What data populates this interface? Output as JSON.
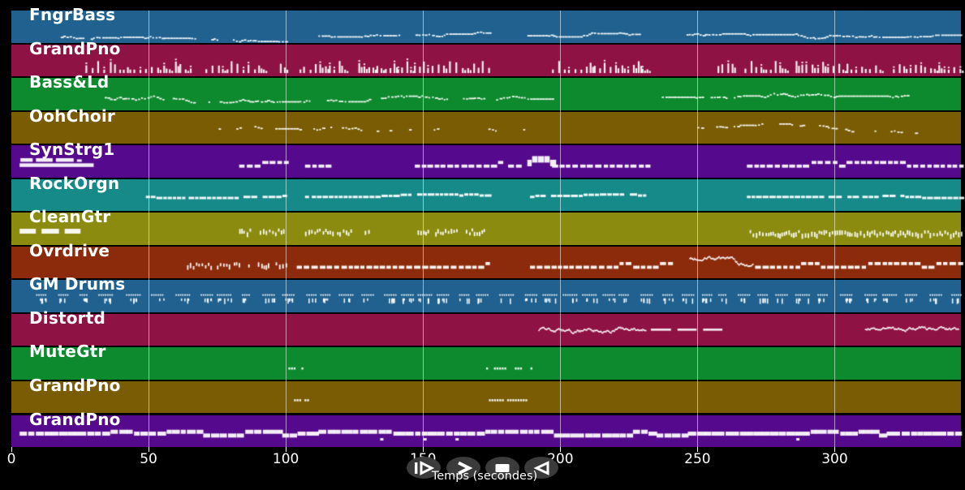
{
  "app": {
    "background": "#000000",
    "notes_color": "#ffffff"
  },
  "axis": {
    "label": "Temps (secondes)",
    "ticks": [
      0,
      50,
      100,
      150,
      200,
      250,
      300
    ],
    "min": 0,
    "max": 346,
    "text_color": "#ffffff",
    "gridlines": true
  },
  "transport": {
    "button_color": "#3b3b3b",
    "glyph_color": "#ffffff",
    "buttons": [
      {
        "name": "play",
        "glyph": "play-bar-icon"
      },
      {
        "name": "fast-forward",
        "glyph": "fast-forward-icon"
      },
      {
        "name": "stop",
        "glyph": "stop-icon"
      },
      {
        "name": "rewind",
        "glyph": "rewind-icon"
      }
    ]
  },
  "chart_data": {
    "type": "midi-track-timeline",
    "xlabel": "Temps (secondes)",
    "x_range": [
      0,
      346
    ],
    "grid": true,
    "tracks": [
      {
        "name": "FngrBass",
        "color": "#20618F",
        "segments": [
          {
            "style": "wavy",
            "s": 18,
            "e": 100,
            "y": 0.8
          },
          {
            "style": "wavy",
            "s": 108,
            "e": 175,
            "y": 0.8
          },
          {
            "style": "wavy",
            "s": 188,
            "e": 229,
            "y": 0.78
          },
          {
            "style": "wavy",
            "s": 246,
            "e": 346,
            "y": 0.78
          }
        ]
      },
      {
        "name": "GrandPno",
        "color": "#8E1243",
        "segments": [
          {
            "style": "vbars",
            "s": 27,
            "e": 100
          },
          {
            "style": "vbars",
            "s": 105,
            "e": 175
          },
          {
            "style": "vbars",
            "s": 197,
            "e": 232
          },
          {
            "style": "vbars",
            "s": 255,
            "e": 346
          }
        ]
      },
      {
        "name": "Bass&Ld",
        "color": "#0E8A2E",
        "segments": [
          {
            "style": "wavy",
            "s": 34,
            "e": 197,
            "y": 0.6
          },
          {
            "style": "wavy",
            "s": 237,
            "e": 327,
            "y": 0.58
          }
        ]
      },
      {
        "name": "OohChoir",
        "color": "#7A5C04",
        "segments": [
          {
            "style": "wavy",
            "s": 67,
            "e": 187,
            "y": 0.5,
            "d": 0.55
          },
          {
            "style": "wavy",
            "s": 250,
            "e": 330,
            "y": 0.5,
            "d": 0.75
          }
        ]
      },
      {
        "name": "SynStrg1",
        "color": "#55098C",
        "segments": [
          {
            "style": "clusterbar",
            "s": 3,
            "e": 30
          },
          {
            "style": "blocks",
            "s": 83,
            "e": 100,
            "y": 0.6
          },
          {
            "style": "blocks",
            "s": 107,
            "e": 117,
            "y": 0.6
          },
          {
            "style": "blocks",
            "s": 147,
            "e": 178,
            "y": 0.6
          },
          {
            "style": "blocks",
            "s": 181,
            "e": 185,
            "y": 0.6
          },
          {
            "style": "tallblocks",
            "s": 188,
            "e": 197,
            "y": 0.5
          },
          {
            "style": "blocks",
            "s": 197,
            "e": 232,
            "y": 0.6
          },
          {
            "style": "blocks",
            "s": 268,
            "e": 346,
            "y": 0.6
          }
        ]
      },
      {
        "name": "RockOrgn",
        "color": "#168989",
        "segments": [
          {
            "style": "dashline",
            "s": 49,
            "e": 100,
            "y": 0.52
          },
          {
            "style": "dashline",
            "s": 107,
            "e": 175,
            "y": 0.52
          },
          {
            "style": "dashline",
            "s": 189,
            "e": 231,
            "y": 0.52
          },
          {
            "style": "dashline",
            "s": 268,
            "e": 346,
            "y": 0.52
          }
        ]
      },
      {
        "name": "CleanGtr",
        "color": "#8B8B10",
        "segments": [
          {
            "style": "leftblocks",
            "s": 3,
            "e": 27
          },
          {
            "style": "smalldash",
            "s": 83,
            "e": 100,
            "y": 0.55,
            "d": 0.8
          },
          {
            "style": "smalldash",
            "s": 107,
            "e": 133,
            "y": 0.55,
            "d": 0.8
          },
          {
            "style": "smalldash",
            "s": 148,
            "e": 175,
            "y": 0.55,
            "d": 0.8
          },
          {
            "style": "smalldash",
            "s": 269,
            "e": 346,
            "y": 0.6,
            "d": 0.97
          }
        ]
      },
      {
        "name": "Ovrdrive",
        "color": "#8C2B0B",
        "segments": [
          {
            "style": "smalldash",
            "s": 64,
            "e": 100,
            "y": 0.55,
            "d": 0.85
          },
          {
            "style": "blocks",
            "s": 104,
            "e": 175,
            "y": 0.6
          },
          {
            "style": "blocks",
            "s": 189,
            "e": 240,
            "y": 0.6
          },
          {
            "style": "thinwave",
            "s": 247,
            "e": 270,
            "y0": 0.34,
            "y1": 0.58
          },
          {
            "style": "blocks",
            "s": 271,
            "e": 346,
            "y": 0.6
          }
        ]
      },
      {
        "name": "GM Drums",
        "color": "#20618F",
        "segments": [
          {
            "style": "drums",
            "s": 9,
            "e": 346
          }
        ]
      },
      {
        "name": "Distortd",
        "color": "#8E1243",
        "segments": [
          {
            "style": "thinwave",
            "s": 192,
            "e": 231,
            "y0": 0.5,
            "y1": 0.46
          },
          {
            "style": "longdash",
            "s": 233,
            "e": 260,
            "y": 0.46
          },
          {
            "style": "thinwave",
            "s": 311,
            "e": 345,
            "y0": 0.45,
            "y1": 0.45
          }
        ]
      },
      {
        "name": "MuteGtr",
        "color": "#0E8A2E",
        "segments": [
          {
            "style": "tiny",
            "s": 100,
            "e": 108,
            "y": 0.62
          },
          {
            "style": "tiny",
            "s": 173,
            "e": 190,
            "y": 0.62
          }
        ]
      },
      {
        "name": "GrandPno",
        "color": "#7A5C04",
        "segments": [
          {
            "style": "tiny",
            "s": 103,
            "e": 109,
            "y": 0.56
          },
          {
            "style": "tiny",
            "s": 174,
            "e": 190,
            "y": 0.56
          }
        ]
      },
      {
        "name": "GrandPno",
        "color": "#55098C",
        "segments": [
          {
            "style": "denserun",
            "s": 3,
            "e": 346,
            "y": 0.52
          }
        ]
      }
    ]
  }
}
